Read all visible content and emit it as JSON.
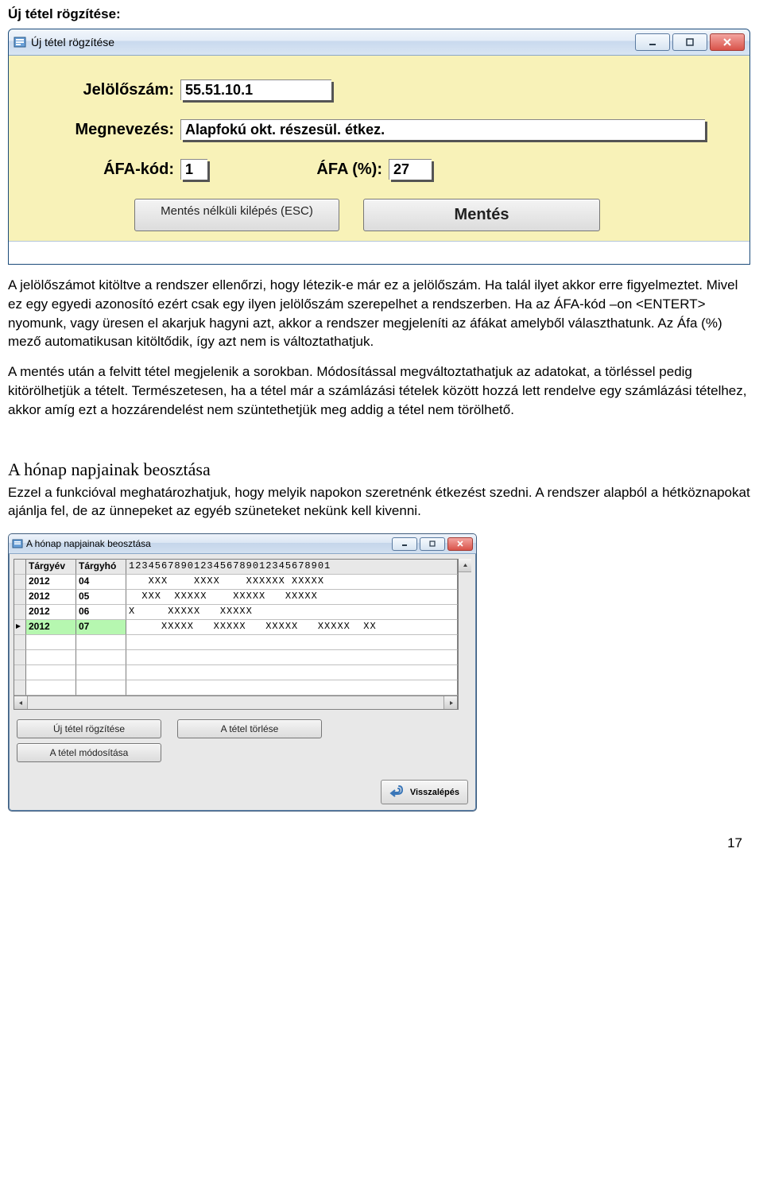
{
  "page": {
    "heading": "Új tétel rögzítése:",
    "page_number": "17"
  },
  "dialog1": {
    "title": "Új tétel rögzítése",
    "fields": {
      "jeloloszam_label": "Jelölőszám:",
      "jeloloszam_value": "55.51.10.1",
      "megnevezes_label": "Megnevezés:",
      "megnevezes_value": "Alapfokú okt. részesül. étkez.",
      "afa_kod_label": "ÁFA-kód:",
      "afa_kod_value": "1",
      "afa_pct_label": "ÁFA (%):",
      "afa_pct_value": "27"
    },
    "buttons": {
      "cancel": "Mentés nélküli kilépés (ESC)",
      "save": "Mentés"
    }
  },
  "body_text": {
    "p1": "A jelölőszámot kitöltve a rendszer ellenőrzi, hogy létezik-e már ez a jelölőszám. Ha talál ilyet akkor erre figyelmeztet. Mivel ez egy egyedi azonosító ezért csak egy ilyen jelölőszám szerepelhet a rendszerben. Ha az ÁFA-kód –on <ENTERT> nyomunk, vagy üresen el akarjuk hagyni azt, akkor a rendszer megjeleníti az áfákat amelyből választhatunk. Az Áfa (%) mező automatikusan kitöltődik, így azt nem is változtathatjuk.",
    "p2": "A mentés után a felvitt tétel megjelenik a sorokban. Módosítással megváltoztathatjuk az adatokat, a törléssel pedig kitörölhetjük a tételt. Természetesen, ha a tétel már a számlázási tételek között hozzá lett rendelve egy számlázási tételhez, akkor amíg ezt a hozzárendelést nem szüntethetjük meg addig a tétel nem törölhető.",
    "sub_heading": "A hónap napjainak beosztása",
    "p3": "Ezzel a funkcióval meghatározhatjuk, hogy melyik napokon szeretnénk étkezést szedni. A rendszer alapból a hétköznapokat ajánlja fel, de az ünnepeket az egyéb szüneteket nekünk kell kivenni."
  },
  "dialog2": {
    "title": "A hónap napjainak beosztása",
    "columns": {
      "year": "Tárgyév",
      "month": "Tárgyhó",
      "days": "1234567890123456789012345678901"
    },
    "rows": [
      {
        "year": "2012",
        "month": "04",
        "days": "   XXX    XXXX    XXXXXX XXXXX",
        "selected": false
      },
      {
        "year": "2012",
        "month": "05",
        "days": "  XXX  XXXXX    XXXXX   XXXXX",
        "selected": false
      },
      {
        "year": "2012",
        "month": "06",
        "days": "X     XXXXX   XXXXX",
        "selected": false
      },
      {
        "year": "2012",
        "month": "07",
        "days": "     XXXXX   XXXXX   XXXXX   XXXXX  XX",
        "selected": true
      }
    ],
    "buttons": {
      "new": "Új tétel rögzítése",
      "delete": "A tétel törlése",
      "modify": "A tétel módosítása",
      "back": "Visszalépés"
    }
  }
}
